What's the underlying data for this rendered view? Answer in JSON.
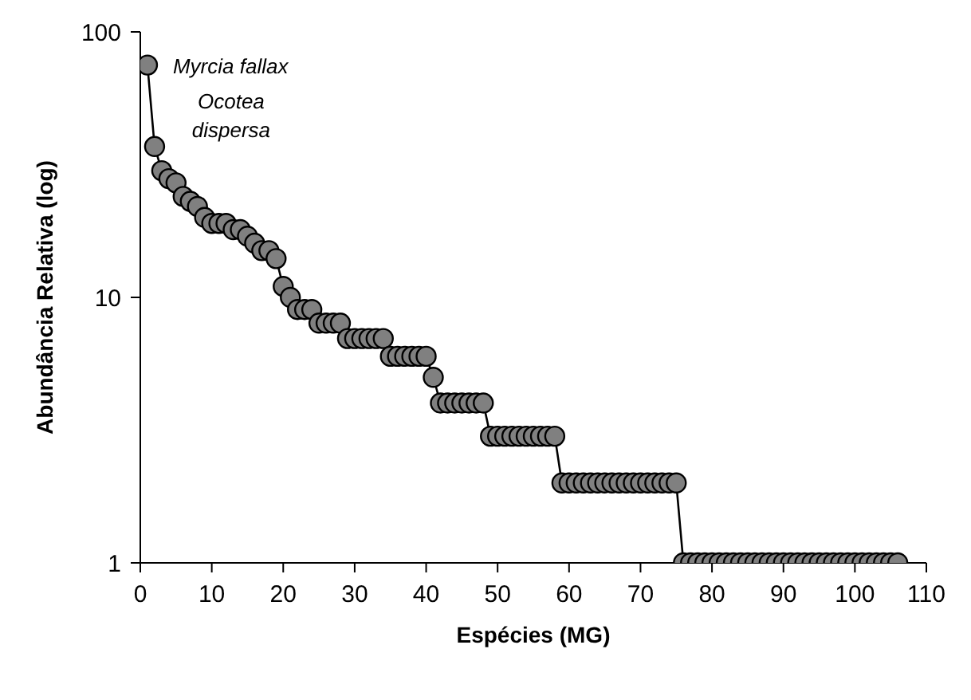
{
  "chart_data": {
    "type": "line",
    "xlabel": "Espécies (MG)",
    "ylabel": "Abundância Relativa (log)",
    "x": [
      1,
      2,
      3,
      4,
      5,
      6,
      7,
      8,
      9,
      10,
      11,
      12,
      13,
      14,
      15,
      16,
      17,
      18,
      19,
      20,
      21,
      22,
      23,
      24,
      25,
      26,
      27,
      28,
      29,
      30,
      31,
      32,
      33,
      34,
      35,
      36,
      37,
      38,
      39,
      40,
      41,
      42,
      43,
      44,
      45,
      46,
      47,
      48,
      49,
      50,
      51,
      52,
      53,
      54,
      55,
      56,
      57,
      58,
      59,
      60,
      61,
      62,
      63,
      64,
      65,
      66,
      67,
      68,
      69,
      70,
      71,
      72,
      73,
      74,
      75,
      76,
      77,
      78,
      79,
      80,
      81,
      82,
      83,
      84,
      85,
      86,
      87,
      88,
      89,
      90,
      91,
      92,
      93,
      94,
      95,
      96,
      97,
      98,
      99,
      100,
      101,
      102,
      103,
      104,
      105,
      106
    ],
    "series": [
      {
        "color": "#808080",
        "values": [
          75,
          37,
          30,
          28,
          27,
          24,
          23,
          22,
          20,
          19,
          19,
          19,
          18,
          18,
          17,
          16,
          15,
          15,
          14,
          11,
          10,
          9,
          9,
          9,
          8,
          8,
          8,
          8,
          7,
          7,
          7,
          7,
          7,
          7,
          6,
          6,
          6,
          6,
          6,
          6,
          5,
          4,
          4,
          4,
          4,
          4,
          4,
          4,
          3,
          3,
          3,
          3,
          3,
          3,
          3,
          3,
          3,
          3,
          2,
          2,
          2,
          2,
          2,
          2,
          2,
          2,
          2,
          2,
          2,
          2,
          2,
          2,
          2,
          2,
          2,
          1,
          1,
          1,
          1,
          1,
          1,
          1,
          1,
          1,
          1,
          1,
          1,
          1,
          1,
          1,
          1,
          1,
          1,
          1,
          1,
          1,
          1,
          1,
          1,
          1,
          1,
          1,
          1,
          1,
          1,
          1
        ]
      }
    ],
    "log": "y",
    "xlim": [
      0,
      110
    ],
    "xticks": [
      0,
      10,
      20,
      30,
      40,
      50,
      60,
      70,
      80,
      90,
      100,
      110
    ],
    "ylim": [
      1,
      100
    ],
    "yticks": [
      1,
      10,
      100
    ],
    "marker": "circle",
    "grid": false,
    "legend": false,
    "annotations": [
      {
        "text": "Myrcia fallax",
        "x": 1,
        "y": 75
      },
      {
        "text": "Ocotea dispersa",
        "x": 2,
        "y": 37
      }
    ]
  }
}
